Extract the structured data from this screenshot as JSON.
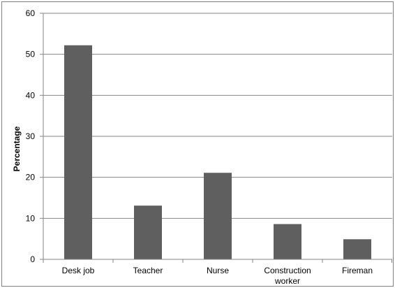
{
  "chart_data": {
    "type": "bar",
    "categories": [
      "Desk job",
      "Teacher",
      "Nurse",
      "Construction worker",
      "Fireman"
    ],
    "category_label_lines": [
      [
        "Desk job"
      ],
      [
        "Teacher"
      ],
      [
        "Nurse"
      ],
      [
        "Construction",
        "worker"
      ],
      [
        "Fireman"
      ]
    ],
    "values": [
      52.2,
      13.1,
      21.1,
      8.6,
      4.9
    ],
    "ylabel": "Percentage",
    "xlabel": "",
    "ylim": [
      0,
      60
    ],
    "yticks": [
      0,
      10,
      20,
      30,
      40,
      50,
      60
    ],
    "grid": true,
    "bar_color": "#5f5f5f",
    "grid_color": "#868686",
    "axis_color": "#868686"
  }
}
